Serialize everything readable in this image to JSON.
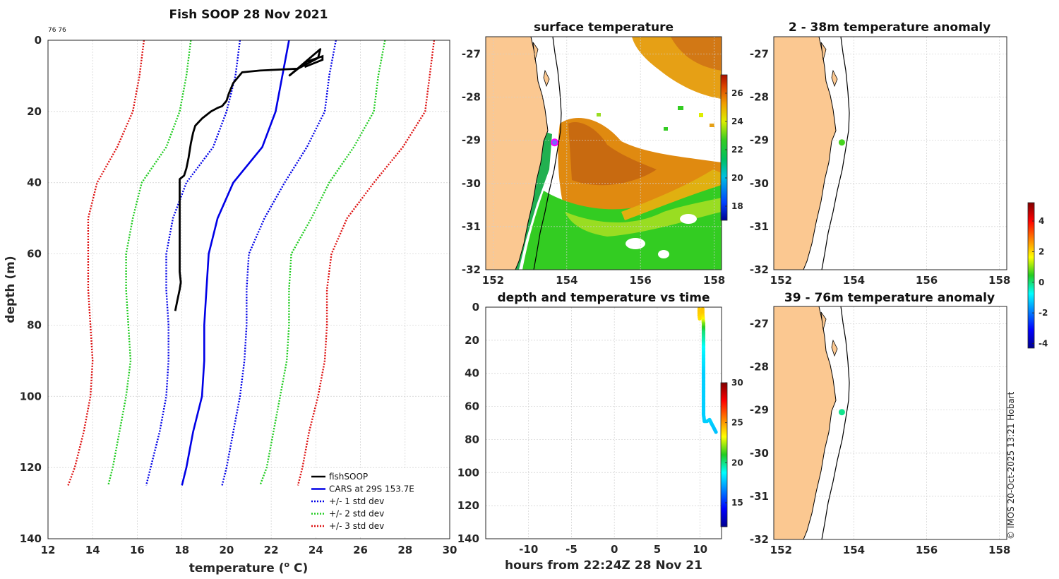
{
  "colors": {
    "fishsoop": "#000000",
    "cars": "#0000e6",
    "std1": "#0000e6",
    "std2": "#22cc22",
    "std3": "#dd1111",
    "land": "#fbc891",
    "swath": "#5599dd"
  },
  "profile": {
    "title": "Fish SOOP 28 Nov 2021",
    "corner_note": "76 76",
    "xlabel": "temperature (° C)",
    "xlabel_main": "temperature (",
    "xlabel_sup": "o",
    "xlabel_tail": " C)",
    "ylabel": "depth (m)",
    "legend": [
      {
        "label": "fishSOOP",
        "style": "solid-black"
      },
      {
        "label": "CARS at 29S 153.7E",
        "style": "solid-blue"
      },
      {
        "label": "+/- 1 std dev",
        "style": "dotted-blue"
      },
      {
        "label": "+/- 2 std dev",
        "style": "dotted-green"
      },
      {
        "label": "+/- 3 std dev",
        "style": "dotted-red"
      }
    ]
  },
  "sst_map": {
    "title": "surface temperature",
    "colorbar_ticks": [
      "18",
      "20",
      "22",
      "24",
      "26"
    ]
  },
  "anom1": {
    "title": "2 - 38m temperature anomaly"
  },
  "anom2": {
    "title": "39 - 76m temperature anomaly"
  },
  "time_plot": {
    "title": "depth and temperature vs time",
    "xlabel": "hours from 22:24Z 28 Nov 21",
    "colorbar_ticks": [
      "15",
      "20",
      "25",
      "30"
    ]
  },
  "anom_colorbar_ticks": [
    "-4",
    "-2",
    "0",
    "2",
    "4"
  ],
  "credit": "© IMOS 20-Oct-2025 13:21 Hobart",
  "chart_data": [
    {
      "type": "line",
      "title": "Fish SOOP 28 Nov 2021",
      "xlabel": "temperature (° C)",
      "ylabel": "depth (m)",
      "xlim": [
        12,
        30
      ],
      "ylim": [
        140,
        0
      ],
      "xticks": [
        12,
        14,
        16,
        18,
        20,
        22,
        24,
        26,
        28,
        30
      ],
      "yticks": [
        0,
        20,
        40,
        60,
        80,
        100,
        120,
        140
      ],
      "grid": true,
      "legend_position": "bottom-right",
      "series": [
        {
          "name": "fishSOOP",
          "points": [
            [
              22.8,
              10
            ],
            [
              24.2,
              2.5
            ],
            [
              24.1,
              5
            ],
            [
              23.2,
              8
            ],
            [
              21.5,
              8.5
            ],
            [
              20.7,
              9
            ],
            [
              20.3,
              12
            ],
            [
              20.1,
              15
            ],
            [
              20.0,
              17
            ],
            [
              19.8,
              18.5
            ],
            [
              19.6,
              19
            ],
            [
              19.3,
              20
            ],
            [
              18.9,
              22
            ],
            [
              18.6,
              24
            ],
            [
              18.5,
              26
            ],
            [
              18.4,
              29
            ],
            [
              18.3,
              33
            ],
            [
              18.2,
              36
            ],
            [
              18.1,
              38
            ],
            [
              17.9,
              39
            ],
            [
              17.9,
              45
            ],
            [
              17.9,
              55
            ],
            [
              17.9,
              65
            ],
            [
              17.95,
              68
            ],
            [
              17.9,
              70
            ],
            [
              17.8,
              73
            ],
            [
              17.7,
              76
            ]
          ],
          "aux_points": [
            [
              22.8,
              10
            ],
            [
              23.6,
              6
            ],
            [
              24.3,
              4.5
            ],
            [
              24.3,
              5.5
            ],
            [
              23.5,
              7.5
            ]
          ]
        },
        {
          "name": "CARS at 29S 153.7E",
          "points": [
            [
              22.8,
              0
            ],
            [
              22.5,
              10
            ],
            [
              22.2,
              20
            ],
            [
              21.6,
              30
            ],
            [
              20.3,
              40
            ],
            [
              19.6,
              50
            ],
            [
              19.2,
              60
            ],
            [
              19.1,
              70
            ],
            [
              19.0,
              80
            ],
            [
              19.0,
              90
            ],
            [
              18.9,
              100
            ],
            [
              18.5,
              110
            ],
            [
              18.2,
              120
            ],
            [
              18.0,
              125
            ]
          ]
        },
        {
          "name": "+1 std dev",
          "points": [
            [
              24.9,
              0
            ],
            [
              24.6,
              10
            ],
            [
              24.4,
              20
            ],
            [
              23.6,
              30
            ],
            [
              22.6,
              40
            ],
            [
              21.7,
              50
            ],
            [
              21.0,
              60
            ],
            [
              20.9,
              70
            ],
            [
              20.9,
              80
            ],
            [
              20.8,
              90
            ],
            [
              20.6,
              100
            ],
            [
              20.3,
              110
            ],
            [
              20.0,
              120
            ],
            [
              19.8,
              125
            ]
          ]
        },
        {
          "name": "-1 std dev",
          "points": [
            [
              20.6,
              0
            ],
            [
              20.4,
              10
            ],
            [
              20.0,
              20
            ],
            [
              19.4,
              30
            ],
            [
              18.2,
              40
            ],
            [
              17.6,
              50
            ],
            [
              17.3,
              60
            ],
            [
              17.3,
              70
            ],
            [
              17.4,
              80
            ],
            [
              17.4,
              90
            ],
            [
              17.3,
              100
            ],
            [
              17.0,
              110
            ],
            [
              16.6,
              120
            ],
            [
              16.4,
              125
            ]
          ]
        },
        {
          "name": "+2 std dev",
          "points": [
            [
              27.1,
              0
            ],
            [
              26.8,
              10
            ],
            [
              26.6,
              20
            ],
            [
              25.7,
              30
            ],
            [
              24.6,
              40
            ],
            [
              23.8,
              50
            ],
            [
              22.9,
              60
            ],
            [
              22.8,
              70
            ],
            [
              22.8,
              80
            ],
            [
              22.7,
              90
            ],
            [
              22.4,
              100
            ],
            [
              22.1,
              110
            ],
            [
              21.8,
              120
            ],
            [
              21.5,
              125
            ]
          ]
        },
        {
          "name": "-2 std dev",
          "points": [
            [
              18.4,
              0
            ],
            [
              18.2,
              10
            ],
            [
              17.9,
              20
            ],
            [
              17.3,
              30
            ],
            [
              16.2,
              40
            ],
            [
              15.8,
              50
            ],
            [
              15.5,
              60
            ],
            [
              15.5,
              70
            ],
            [
              15.6,
              80
            ],
            [
              15.7,
              90
            ],
            [
              15.5,
              100
            ],
            [
              15.2,
              110
            ],
            [
              14.9,
              120
            ],
            [
              14.7,
              125
            ]
          ]
        },
        {
          "name": "+3 std dev",
          "points": [
            [
              29.3,
              0
            ],
            [
              29.1,
              10
            ],
            [
              28.9,
              20
            ],
            [
              27.9,
              30
            ],
            [
              26.6,
              40
            ],
            [
              25.4,
              50
            ],
            [
              24.7,
              60
            ],
            [
              24.5,
              70
            ],
            [
              24.5,
              80
            ],
            [
              24.4,
              90
            ],
            [
              24.1,
              100
            ],
            [
              23.7,
              110
            ],
            [
              23.4,
              120
            ],
            [
              23.2,
              125
            ]
          ]
        },
        {
          "name": "-3 std dev",
          "points": [
            [
              16.3,
              0
            ],
            [
              16.1,
              10
            ],
            [
              15.8,
              20
            ],
            [
              15.1,
              30
            ],
            [
              14.2,
              40
            ],
            [
              13.8,
              50
            ],
            [
              13.8,
              60
            ],
            [
              13.8,
              70
            ],
            [
              13.9,
              80
            ],
            [
              14.0,
              90
            ],
            [
              13.9,
              100
            ],
            [
              13.6,
              110
            ],
            [
              13.2,
              120
            ],
            [
              12.9,
              125
            ]
          ]
        }
      ]
    },
    {
      "type": "scatter",
      "title": "depth and temperature vs time",
      "xlabel": "hours from 22:24Z 28 Nov 21",
      "ylabel": "",
      "xlim": [
        -15,
        12.5
      ],
      "ylim": [
        140,
        0
      ],
      "xticks": [
        -10,
        -5,
        0,
        5,
        10
      ],
      "yticks": [
        0,
        20,
        40,
        60,
        80,
        100,
        120,
        140
      ],
      "grid": true,
      "colorbar": {
        "min": 12,
        "max": 30,
        "ticks": [
          15,
          20,
          25,
          30
        ]
      },
      "points": [
        {
          "hours": 9.9,
          "depth": 1,
          "temp": 24.2
        },
        {
          "hours": 9.9,
          "depth": 3,
          "temp": 24.2
        },
        {
          "hours": 9.9,
          "depth": 5,
          "temp": 24.1
        },
        {
          "hours": 9.95,
          "depth": 7,
          "temp": 23.8
        },
        {
          "hours": 10.3,
          "depth": 1,
          "temp": 24.3
        },
        {
          "hours": 10.3,
          "depth": 4,
          "temp": 24.2
        },
        {
          "hours": 10.35,
          "depth": 7,
          "temp": 23.5
        },
        {
          "hours": 10.4,
          "depth": 10,
          "temp": 22.0
        },
        {
          "hours": 10.4,
          "depth": 15,
          "temp": 20.2
        },
        {
          "hours": 10.4,
          "depth": 20,
          "temp": 19.5
        },
        {
          "hours": 10.4,
          "depth": 25,
          "temp": 18.7
        },
        {
          "hours": 10.4,
          "depth": 30,
          "temp": 18.4
        },
        {
          "hours": 10.4,
          "depth": 35,
          "temp": 18.2
        },
        {
          "hours": 10.4,
          "depth": 40,
          "temp": 17.9
        },
        {
          "hours": 10.4,
          "depth": 45,
          "temp": 17.9
        },
        {
          "hours": 10.4,
          "depth": 50,
          "temp": 17.9
        },
        {
          "hours": 10.4,
          "depth": 55,
          "temp": 17.9
        },
        {
          "hours": 10.4,
          "depth": 60,
          "temp": 17.9
        },
        {
          "hours": 10.4,
          "depth": 65,
          "temp": 17.9
        },
        {
          "hours": 10.5,
          "depth": 69,
          "temp": 17.9
        },
        {
          "hours": 10.8,
          "depth": 69,
          "temp": 17.9
        },
        {
          "hours": 11.1,
          "depth": 68,
          "temp": 17.95
        },
        {
          "hours": 11.3,
          "depth": 70,
          "temp": 17.9
        },
        {
          "hours": 11.5,
          "depth": 72,
          "temp": 17.8
        },
        {
          "hours": 11.7,
          "depth": 74,
          "temp": 17.7
        },
        {
          "hours": 11.85,
          "depth": 75.5,
          "temp": 17.7
        }
      ]
    }
  ],
  "maps": {
    "xticks": [
      "152",
      "154",
      "156",
      "158"
    ],
    "yticks": [
      "-27",
      "-28",
      "-29",
      "-30",
      "-31",
      "-32"
    ],
    "lon_range": [
      151.8,
      158.2
    ],
    "lat_range": [
      -32,
      -26.6
    ],
    "station": {
      "lon": 153.67,
      "lat": -29.05
    },
    "anomaly_1": 0.2,
    "anomaly_2": -0.6
  }
}
